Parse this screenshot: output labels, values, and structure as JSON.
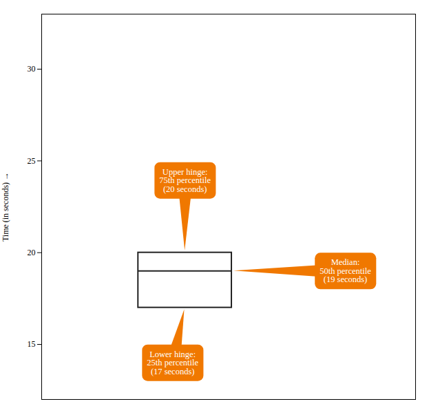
{
  "chart_data": {
    "type": "box",
    "ylabel": "Time (in seconds)",
    "ylim": [
      12,
      33
    ],
    "yticks": [
      15,
      20,
      25,
      30
    ],
    "q1": 17,
    "median": 19,
    "q3": 20,
    "color": "#222222",
    "annotations": {
      "q3": "Upper hinge:\n75th percentile\n(20 seconds)",
      "median": "Median:\n50th percentile\n(19 seconds)",
      "q1": "Lower hinge:\n25th percentile\n(17 seconds)"
    },
    "annotation_color": "#F07800",
    "annotation_text_color": "#FFFFFF",
    "tick_labels": "y",
    "grid": false
  }
}
